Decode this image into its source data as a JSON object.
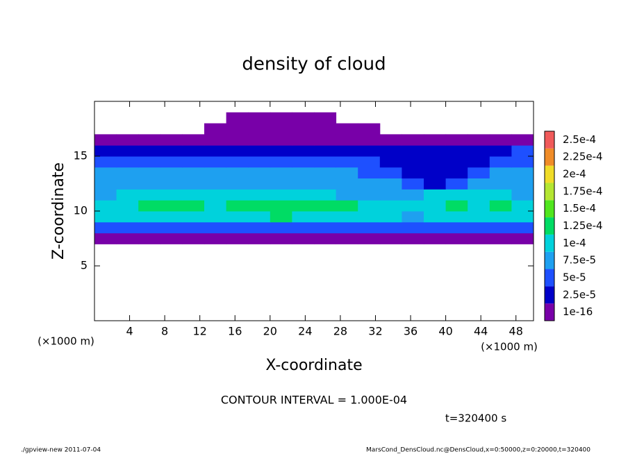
{
  "chart_data": {
    "type": "contour",
    "title": "density of cloud",
    "xlabel": "X-coordinate",
    "ylabel": "Z-coordinate",
    "x_unit": "(×1000 m)",
    "xlim": [
      0,
      50
    ],
    "ylim": [
      0,
      20
    ],
    "xticks": [
      4,
      8,
      12,
      16,
      20,
      24,
      28,
      32,
      36,
      40,
      44,
      48
    ],
    "yticks": [
      5,
      10,
      15
    ],
    "x": [
      1.25,
      3.75,
      6.25,
      8.75,
      11.25,
      13.75,
      16.25,
      18.75,
      21.25,
      23.75,
      26.25,
      28.75,
      31.25,
      33.75,
      36.25,
      38.75,
      41.25,
      43.75,
      46.25,
      48.75
    ],
    "y": [
      7.5,
      8.5,
      9.5,
      10.5,
      11.5,
      12.5,
      13.5,
      14.5,
      15.5,
      16.5,
      17.5,
      18.5
    ],
    "values": [
      [
        2e-05,
        2e-05,
        2e-05,
        2e-05,
        2e-05,
        2e-05,
        2e-05,
        2e-05,
        2e-05,
        2e-05,
        2e-05,
        2e-05,
        2e-05,
        2e-05,
        2e-05,
        2e-05,
        2e-05,
        2e-05,
        2e-05,
        2e-05
      ],
      [
        6e-05,
        6e-05,
        6e-05,
        6e-05,
        6e-05,
        6e-05,
        6e-05,
        6e-05,
        6e-05,
        6e-05,
        6e-05,
        6e-05,
        6e-05,
        6e-05,
        6e-05,
        6e-05,
        6e-05,
        6e-05,
        6e-05,
        6e-05
      ],
      [
        0.00011,
        0.000105,
        0.00011,
        0.000115,
        0.00011,
        0.000105,
        0.00011,
        0.00012,
        0.000125,
        0.00012,
        0.00011,
        0.000105,
        0.00011,
        0.000105,
        9e-05,
        0.000105,
        0.00011,
        0.000105,
        0.00011,
        0.000105
      ],
      [
        0.000115,
        0.00012,
        0.000125,
        0.00013,
        0.000125,
        0.00012,
        0.00013,
        0.000135,
        0.00014,
        0.000135,
        0.00013,
        0.000125,
        0.00012,
        0.00012,
        0.000115,
        0.00012,
        0.000125,
        0.00012,
        0.000125,
        0.00012
      ],
      [
        9e-05,
        0.000105,
        0.0001,
        0.000105,
        0.00011,
        0.0001,
        0.000105,
        0.00011,
        0.00011,
        0.000105,
        0.0001,
        9.5e-05,
        9e-05,
        9.5e-05,
        9e-05,
        0.000105,
        0.000105,
        0.00011,
        0.0001,
        9.5e-05
      ],
      [
        8.5e-05,
        8.5e-05,
        9e-05,
        8.5e-05,
        8.5e-05,
        8.5e-05,
        8.5e-05,
        8.5e-05,
        8.5e-05,
        8.5e-05,
        8.5e-05,
        8e-05,
        8e-05,
        7.5e-05,
        6e-05,
        4.5e-05,
        6e-05,
        8e-05,
        8.5e-05,
        8e-05
      ],
      [
        8e-05,
        8e-05,
        8e-05,
        8e-05,
        8e-05,
        8e-05,
        8e-05,
        8e-05,
        8e-05,
        8e-05,
        8e-05,
        7.5e-05,
        7e-05,
        6e-05,
        4e-05,
        4e-05,
        4e-05,
        6e-05,
        8e-05,
        8e-05
      ],
      [
        7e-05,
        7e-05,
        7e-05,
        7e-05,
        7e-05,
        7e-05,
        7e-05,
        7e-05,
        7e-05,
        7e-05,
        6.5e-05,
        6e-05,
        5.5e-05,
        4e-05,
        3.5e-05,
        3.5e-05,
        3.5e-05,
        4e-05,
        6e-05,
        7e-05
      ],
      [
        4.5e-05,
        4.5e-05,
        4.5e-05,
        4.5e-05,
        4.5e-05,
        4.5e-05,
        4.5e-05,
        4.5e-05,
        4.5e-05,
        4.5e-05,
        4.5e-05,
        4.5e-05,
        4.5e-05,
        3e-05,
        3e-05,
        3e-05,
        3e-05,
        3e-05,
        4.5e-05,
        5.5e-05
      ],
      [
        1e-05,
        1e-05,
        1e-05,
        1e-05,
        1e-05,
        1e-05,
        1e-05,
        1e-05,
        1e-05,
        1e-05,
        1e-05,
        1e-05,
        1e-05,
        1e-05,
        1e-05,
        1e-05,
        1e-05,
        1e-05,
        1e-05,
        1e-05
      ],
      [
        0,
        0,
        0,
        0,
        0,
        1e-05,
        1e-05,
        1e-05,
        1e-05,
        1e-05,
        1e-05,
        1e-05,
        1e-05,
        0,
        0,
        0,
        0,
        0,
        0,
        0
      ],
      [
        0,
        0,
        0,
        0,
        0,
        0,
        1e-05,
        1e-05,
        1e-05,
        1e-05,
        1e-05,
        0,
        0,
        0,
        0,
        0,
        0,
        0,
        0,
        0
      ]
    ],
    "colorbar": {
      "ticks": [
        1e-16,
        {
          "value": 2.5e-05,
          "label": "2.5e-5"
        },
        {
          "value": 5e-05,
          "label": "5e-5"
        },
        {
          "value": 7.5e-05,
          "label": "7.5e-5"
        },
        {
          "value": 0.0001,
          "label": "1e-4"
        },
        {
          "value": 0.000125,
          "label": "1.25e-4"
        },
        {
          "value": 0.00015,
          "label": "1.5e-4"
        },
        {
          "value": 0.000175,
          "label": "1.75e-4"
        },
        {
          "value": 0.0002,
          "label": "2e-4"
        },
        {
          "value": 0.000225,
          "label": "2.25e-4"
        },
        {
          "value": 0.00025,
          "label": "2.5e-4"
        }
      ],
      "colors": [
        "#7800a8",
        "#0000c8",
        "#1e50ff",
        "#1ea0f0",
        "#00d2dc",
        "#00dc64",
        "#50e61e",
        "#b4e632",
        "#f0dc28",
        "#f08c28",
        "#f05a5a"
      ]
    },
    "contour_label": "CONTOUR INTERVAL = 1.000E-04",
    "time_label": "t=320400 s",
    "footer_left": "./gpview-new  2011-07-04",
    "footer_right": "MarsCond_DensCloud.nc@DensCloud,x=0:50000,z=0:20000,t=320400"
  }
}
